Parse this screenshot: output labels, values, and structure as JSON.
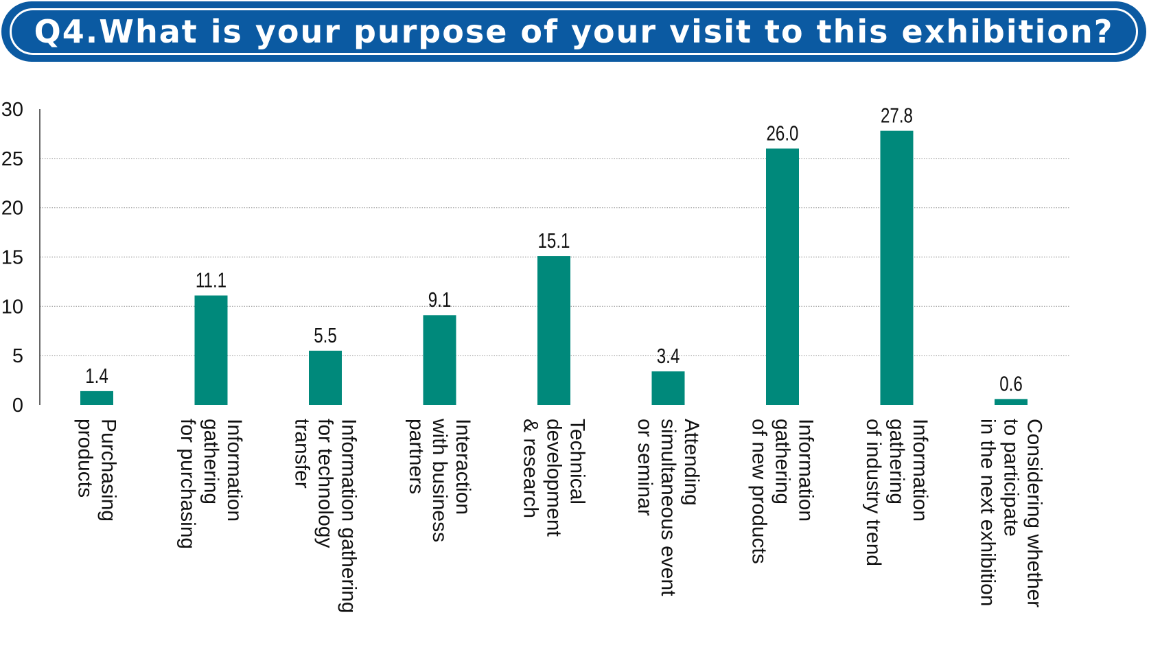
{
  "title": "Q4.What is your purpose of your visit to this exhibition?",
  "colors": {
    "banner": "#0b5aa2",
    "bar": "#00897b",
    "grid": "#9a9a9a"
  },
  "chart_data": {
    "type": "bar",
    "title": "Q4.What is your purpose of your visit to this exhibition?",
    "categories": [
      [
        "Purchasing",
        "products"
      ],
      [
        "Information",
        "gathering",
        "for purchasing"
      ],
      [
        "Information gathering",
        "for technology",
        "transfer"
      ],
      [
        "Interaction",
        "with business",
        "partners"
      ],
      [
        "Technical",
        "development",
        "& research"
      ],
      [
        "Attending",
        "simultaneous event",
        "or seminar"
      ],
      [
        "Information",
        "gathering",
        "of new products"
      ],
      [
        "Information",
        "gathering",
        "of industry trend"
      ],
      [
        "Considering whether",
        "to participate",
        "in the next exhibition"
      ]
    ],
    "values": [
      1.4,
      11.1,
      5.5,
      9.1,
      15.1,
      3.4,
      26.0,
      27.8,
      0.6
    ],
    "value_labels": [
      "1.4",
      "11.1",
      "5.5",
      "9.1",
      "15.1",
      "3.4",
      "26.0",
      "27.8",
      "0.6"
    ],
    "ylim": [
      0,
      30
    ],
    "yticks": [
      0,
      5,
      10,
      15,
      20,
      25,
      30
    ],
    "grid": true,
    "xlabel": "",
    "ylabel": ""
  }
}
